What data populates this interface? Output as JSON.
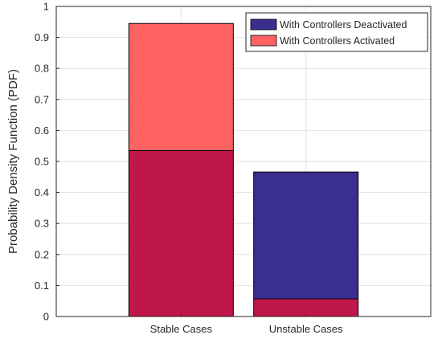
{
  "chart_data": {
    "type": "bar",
    "categories": [
      "Stable Cases",
      "Unstable Cases"
    ],
    "series": [
      {
        "name": "With Controllers Deactivated",
        "values": [
          0.535,
          0.466
        ],
        "color": "#3a2f8f"
      },
      {
        "name": "With Controllers Activated",
        "values": [
          0.945,
          0.057
        ],
        "color": "#ff6262"
      }
    ],
    "overlap_color": "#c0174a",
    "title": "",
    "xlabel": "",
    "ylabel": "Probability Density Function (PDF)",
    "ylim": [
      0,
      1
    ],
    "yticks": [
      "0",
      "0.1",
      "0.2",
      "0.3",
      "0.4",
      "0.5",
      "0.6",
      "0.7",
      "0.8",
      "0.9",
      "1"
    ],
    "grid": true,
    "legend_position": "top-right"
  }
}
